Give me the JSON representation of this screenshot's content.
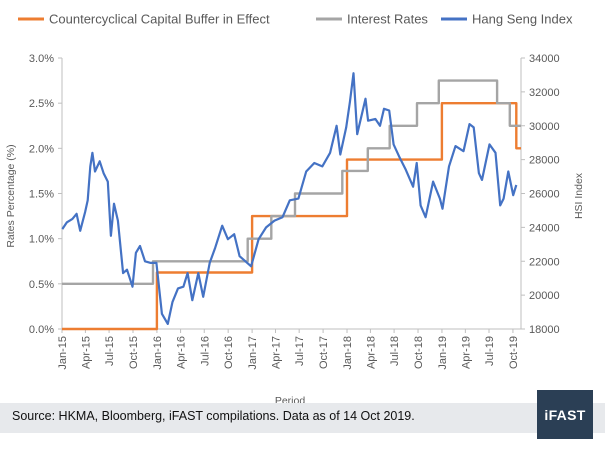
{
  "colors": {
    "ccyb": "#ed7d31",
    "rates": "#a5a5a5",
    "hsi": "#4472c4",
    "axis": "#bfbfbf",
    "text": "#595959",
    "footer_band": "#e7e9ec",
    "logo_bg": "#2b3f55"
  },
  "footer": {
    "source": "Source: HKMA, Bloomberg, iFAST compilations. Data as of 14 Oct 2019.",
    "logo": "iFAST"
  },
  "chart_data": {
    "type": "line",
    "title": "",
    "xlabel": "Period",
    "ylabel": "Rates Percentage (%)",
    "y2label": "HSI Index",
    "legend_position": "top",
    "grid": false,
    "x_tick_labels": [
      "Jan-15",
      "Apr-15",
      "Jul-15",
      "Oct-15",
      "Jan-16",
      "Apr-16",
      "Jul-16",
      "Oct-16",
      "Jan-17",
      "Apr-17",
      "Jul-17",
      "Oct-17",
      "Jan-18",
      "Apr-18",
      "Jul-18",
      "Oct-18",
      "Jan-19",
      "Apr-19",
      "Jul-19",
      "Oct-19"
    ],
    "xlim": [
      "2015-01-01",
      "2019-11-01"
    ],
    "ylim": [
      0,
      3
    ],
    "y_tick_labels": [
      "0.0%",
      "0.5%",
      "1.0%",
      "1.5%",
      "2.0%",
      "2.5%",
      "3.0%"
    ],
    "y2lim": [
      18000,
      34000
    ],
    "y2_tick_labels": [
      "18000",
      "20000",
      "22000",
      "24000",
      "26000",
      "28000",
      "30000",
      "32000",
      "34000"
    ],
    "series": [
      {
        "name": "Countercyclical Capital Buffer in Effect",
        "axis": "left",
        "step": true,
        "points": [
          [
            "2015-01-01",
            0
          ],
          [
            "2016-01-01",
            0
          ],
          [
            "2016-01-01",
            0.625
          ],
          [
            "2017-01-01",
            0.625
          ],
          [
            "2017-01-01",
            1.25
          ],
          [
            "2018-01-01",
            1.25
          ],
          [
            "2018-01-01",
            1.875
          ],
          [
            "2019-01-01",
            1.875
          ],
          [
            "2019-01-01",
            2.5
          ],
          [
            "2019-10-14",
            2.5
          ],
          [
            "2019-10-14",
            2.0
          ],
          [
            "2019-11-01",
            2.0
          ]
        ]
      },
      {
        "name": "Interest Rates",
        "axis": "left",
        "step": true,
        "points": [
          [
            "2015-01-01",
            0.5
          ],
          [
            "2015-12-17",
            0.5
          ],
          [
            "2015-12-17",
            0.75
          ],
          [
            "2016-12-15",
            0.75
          ],
          [
            "2016-12-15",
            1.0
          ],
          [
            "2017-03-16",
            1.0
          ],
          [
            "2017-03-16",
            1.25
          ],
          [
            "2017-06-15",
            1.25
          ],
          [
            "2017-06-15",
            1.5
          ],
          [
            "2017-12-14",
            1.5
          ],
          [
            "2017-12-14",
            1.75
          ],
          [
            "2018-03-22",
            1.75
          ],
          [
            "2018-03-22",
            2.0
          ],
          [
            "2018-06-14",
            2.0
          ],
          [
            "2018-06-14",
            2.25
          ],
          [
            "2018-09-27",
            2.25
          ],
          [
            "2018-09-27",
            2.5
          ],
          [
            "2018-12-20",
            2.5
          ],
          [
            "2018-12-20",
            2.75
          ],
          [
            "2019-08-01",
            2.75
          ],
          [
            "2019-08-01",
            2.5
          ],
          [
            "2019-09-19",
            2.5
          ],
          [
            "2019-09-19",
            2.25
          ],
          [
            "2019-11-01",
            2.25
          ]
        ]
      },
      {
        "name": "Hang Seng Index",
        "axis": "right",
        "points": [
          [
            "2015-01-02",
            23900
          ],
          [
            "2015-01-20",
            24300
          ],
          [
            "2015-02-10",
            24500
          ],
          [
            "2015-02-26",
            24800
          ],
          [
            "2015-03-12",
            23800
          ],
          [
            "2015-03-31",
            24900
          ],
          [
            "2015-04-10",
            25600
          ],
          [
            "2015-04-20",
            27600
          ],
          [
            "2015-04-28",
            28400
          ],
          [
            "2015-05-08",
            27300
          ],
          [
            "2015-05-26",
            27900
          ],
          [
            "2015-06-10",
            27200
          ],
          [
            "2015-06-26",
            26700
          ],
          [
            "2015-07-08",
            23500
          ],
          [
            "2015-07-20",
            25400
          ],
          [
            "2015-08-04",
            24400
          ],
          [
            "2015-08-24",
            21300
          ],
          [
            "2015-09-08",
            21500
          ],
          [
            "2015-09-29",
            20500
          ],
          [
            "2015-10-12",
            22500
          ],
          [
            "2015-10-28",
            22900
          ],
          [
            "2015-11-16",
            22000
          ],
          [
            "2015-12-08",
            21900
          ],
          [
            "2015-12-30",
            21900
          ],
          [
            "2016-01-20",
            18900
          ],
          [
            "2016-02-12",
            18300
          ],
          [
            "2016-03-01",
            19600
          ],
          [
            "2016-03-22",
            20400
          ],
          [
            "2016-04-12",
            20500
          ],
          [
            "2016-04-28",
            21300
          ],
          [
            "2016-05-16",
            19700
          ],
          [
            "2016-06-08",
            21300
          ],
          [
            "2016-06-27",
            19900
          ],
          [
            "2016-07-22",
            21900
          ],
          [
            "2016-08-12",
            22800
          ],
          [
            "2016-09-08",
            24100
          ],
          [
            "2016-09-30",
            23300
          ],
          [
            "2016-10-24",
            23600
          ],
          [
            "2016-11-14",
            22300
          ],
          [
            "2016-12-28",
            21700
          ],
          [
            "2017-01-26",
            23300
          ],
          [
            "2017-02-24",
            24000
          ],
          [
            "2017-03-28",
            24400
          ],
          [
            "2017-04-28",
            24600
          ],
          [
            "2017-05-26",
            25600
          ],
          [
            "2017-06-28",
            25700
          ],
          [
            "2017-07-28",
            27300
          ],
          [
            "2017-08-28",
            27800
          ],
          [
            "2017-09-28",
            27600
          ],
          [
            "2017-10-28",
            28400
          ],
          [
            "2017-11-22",
            30000
          ],
          [
            "2017-12-06",
            28300
          ],
          [
            "2017-12-29",
            29900
          ],
          [
            "2018-01-12",
            31400
          ],
          [
            "2018-01-26",
            33100
          ],
          [
            "2018-02-09",
            29500
          ],
          [
            "2018-03-13",
            31600
          ],
          [
            "2018-03-23",
            30300
          ],
          [
            "2018-04-20",
            30400
          ],
          [
            "2018-05-08",
            30000
          ],
          [
            "2018-05-23",
            31000
          ],
          [
            "2018-06-12",
            30900
          ],
          [
            "2018-06-29",
            28900
          ],
          [
            "2018-07-20",
            28200
          ],
          [
            "2018-08-15",
            27400
          ],
          [
            "2018-09-12",
            26400
          ],
          [
            "2018-09-26",
            27800
          ],
          [
            "2018-10-11",
            25300
          ],
          [
            "2018-10-30",
            24600
          ],
          [
            "2018-11-28",
            26700
          ],
          [
            "2018-12-24",
            25700
          ],
          [
            "2019-01-03",
            25100
          ],
          [
            "2019-01-28",
            27600
          ],
          [
            "2019-02-22",
            28800
          ],
          [
            "2019-03-25",
            28500
          ],
          [
            "2019-04-17",
            30100
          ],
          [
            "2019-05-03",
            29900
          ],
          [
            "2019-05-23",
            27200
          ],
          [
            "2019-06-04",
            26800
          ],
          [
            "2019-07-03",
            28900
          ],
          [
            "2019-07-26",
            28400
          ],
          [
            "2019-08-13",
            25300
          ],
          [
            "2019-08-26",
            25700
          ],
          [
            "2019-09-13",
            27300
          ],
          [
            "2019-10-02",
            25900
          ],
          [
            "2019-10-14",
            26500
          ]
        ]
      }
    ]
  }
}
